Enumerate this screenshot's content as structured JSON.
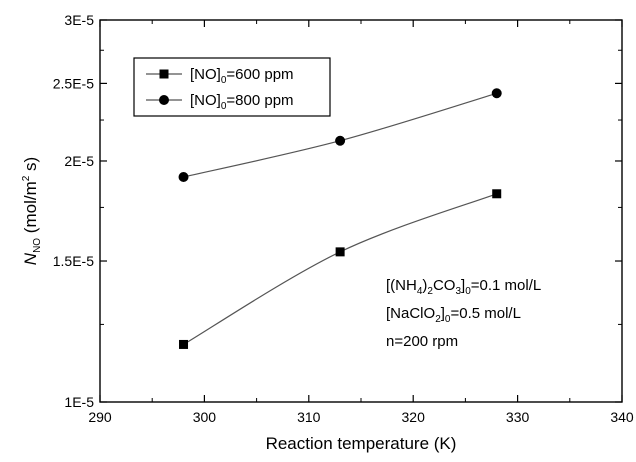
{
  "chart_data": {
    "type": "line",
    "xlabel": "Reaction temperature (K)",
    "ylabel": {
      "parts": [
        {
          "text": "N",
          "style": "italic"
        },
        {
          "text": "NO",
          "style": "sub"
        },
        {
          "text": " (mol/m",
          "style": "normal"
        },
        {
          "text": "2",
          "style": "sup"
        },
        {
          "text": " s)",
          "style": "normal"
        }
      ]
    },
    "xlim": [
      290,
      340
    ],
    "ylim": [
      1e-05,
      3e-05
    ],
    "yscale": "log",
    "xticks": [
      290,
      300,
      310,
      320,
      330,
      340
    ],
    "xtick_labels": [
      "290",
      "300",
      "310",
      "320",
      "330",
      "340"
    ],
    "yticks": [
      1e-05,
      1.5e-05,
      2e-05,
      2.5e-05,
      3e-05
    ],
    "ytick_labels": [
      "1E-5",
      "1.5E-5",
      "2E-5",
      "2.5E-5",
      "3E-5"
    ],
    "series": [
      {
        "name": [
          "[NO]",
          "0",
          "=600 ppm"
        ],
        "marker": "square",
        "x": [
          298,
          313,
          328
        ],
        "y": [
          1.18e-05,
          1.54e-05,
          1.82e-05
        ]
      },
      {
        "name": [
          "[NO]",
          "0",
          "=800 ppm"
        ],
        "marker": "circle",
        "x": [
          298,
          313,
          328
        ],
        "y": [
          1.91e-05,
          2.12e-05,
          2.43e-05
        ]
      }
    ],
    "legend_position": "top-left",
    "annotations": [
      [
        "[(NH",
        "4",
        ")",
        "2",
        "CO",
        "3",
        "]",
        "0",
        "=0.1 mol/L"
      ],
      [
        "[NaClO",
        "2",
        "]",
        "0",
        "=0.5 mol/L"
      ],
      [
        "n=200 rpm"
      ]
    ],
    "colors": {
      "line": "#555555",
      "marker": "#000000",
      "axis": "#000000"
    }
  }
}
